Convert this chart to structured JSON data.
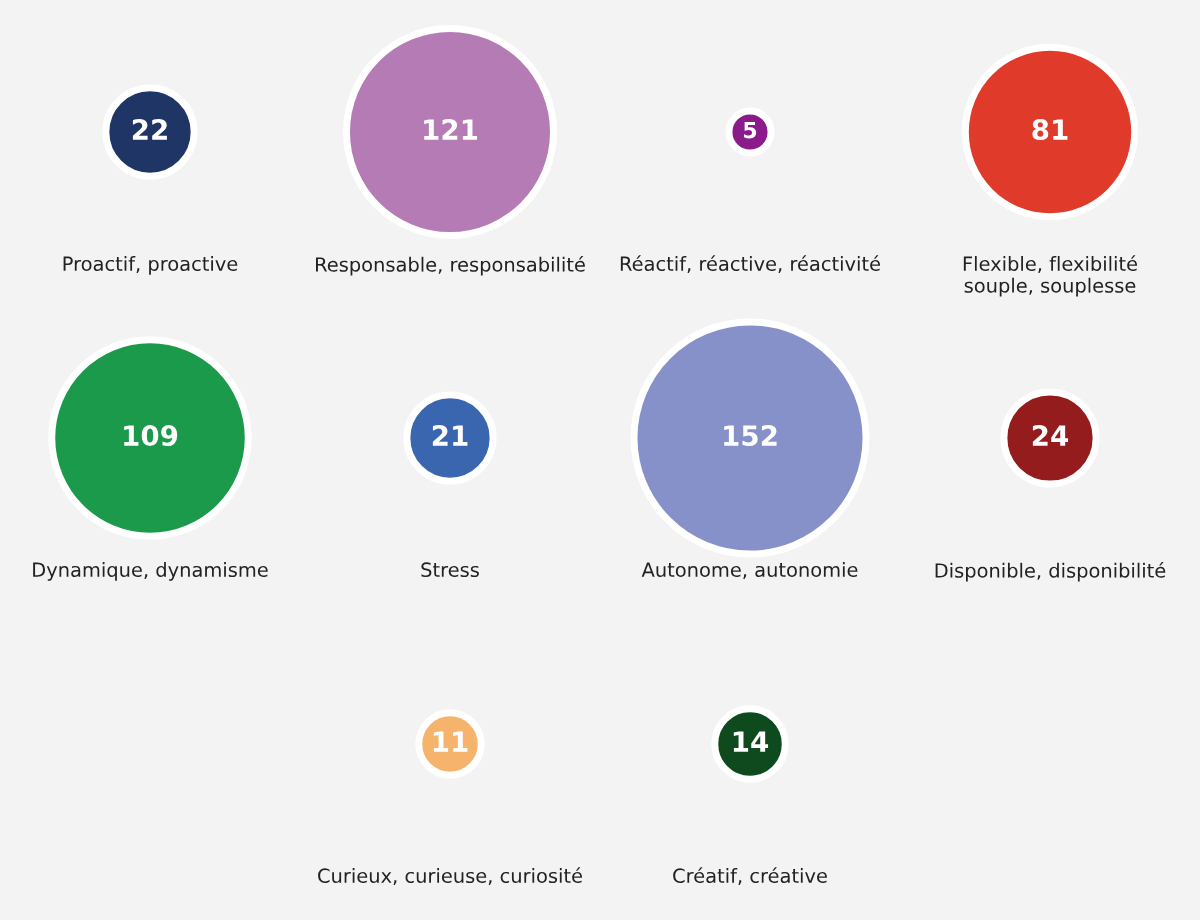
{
  "chart_data": {
    "type": "other",
    "categories": [
      "Proactif, proactive",
      "Responsable, responsabilité",
      "Réactif, réactive, réactivité",
      "Flexible, flexibilité\nsouple, souplesse",
      "Dynamique, dynamisme",
      "Stress",
      "Autonome, autonomie",
      "Disponible, disponibilité",
      "Curieux, curieuse, curiosité",
      "Créatif, créative"
    ],
    "values": [
      22,
      121,
      5,
      81,
      109,
      21,
      152,
      24,
      11,
      14
    ],
    "colors": [
      "#1f3566",
      "#b57bb5",
      "#8b1a8b",
      "#e03a2a",
      "#1a9a4a",
      "#3a66b0",
      "#8591c8",
      "#951c1c",
      "#f6b36b",
      "#0f4a1f"
    ],
    "data_labels": true
  }
}
